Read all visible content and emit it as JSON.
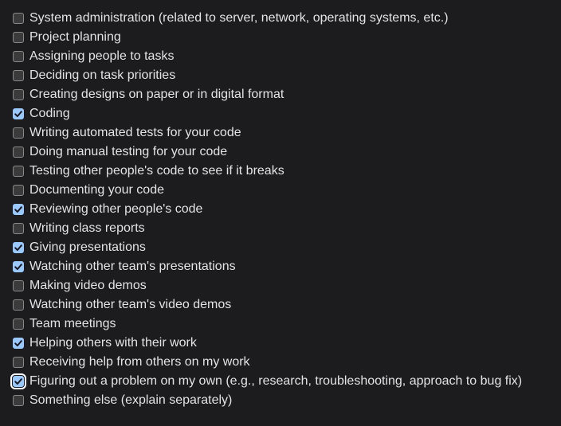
{
  "colors": {
    "background": "#1c1c1e",
    "text": "#e3e3e3",
    "checkbox_checked": "#99c8ff",
    "checkmark": "#1c1c1e"
  },
  "options": [
    {
      "label": "System administration (related to server, network, operating systems, etc.)",
      "checked": false
    },
    {
      "label": "Project planning",
      "checked": false
    },
    {
      "label": "Assigning people to tasks",
      "checked": false
    },
    {
      "label": "Deciding on task priorities",
      "checked": false
    },
    {
      "label": "Creating designs on paper or in digital format",
      "checked": false
    },
    {
      "label": "Coding",
      "checked": true
    },
    {
      "label": "Writing automated tests for your code",
      "checked": false
    },
    {
      "label": "Doing manual testing for your code",
      "checked": false
    },
    {
      "label": "Testing other people's code to see if it breaks",
      "checked": false
    },
    {
      "label": "Documenting your code",
      "checked": false
    },
    {
      "label": "Reviewing other people's code",
      "checked": true
    },
    {
      "label": "Writing class reports",
      "checked": false
    },
    {
      "label": "Giving presentations",
      "checked": true
    },
    {
      "label": "Watching other team's presentations",
      "checked": true
    },
    {
      "label": "Making video demos",
      "checked": false
    },
    {
      "label": "Watching other team's video demos",
      "checked": false
    },
    {
      "label": "Team meetings",
      "checked": false
    },
    {
      "label": "Helping others with their work",
      "checked": true
    },
    {
      "label": "Receiving help from others on my work",
      "checked": false
    },
    {
      "label": "Figuring out a problem on my own (e.g., research, troubleshooting, approach to bug fix)",
      "checked": true,
      "focused": true
    },
    {
      "label": "Something else (explain separately)",
      "checked": false
    }
  ]
}
